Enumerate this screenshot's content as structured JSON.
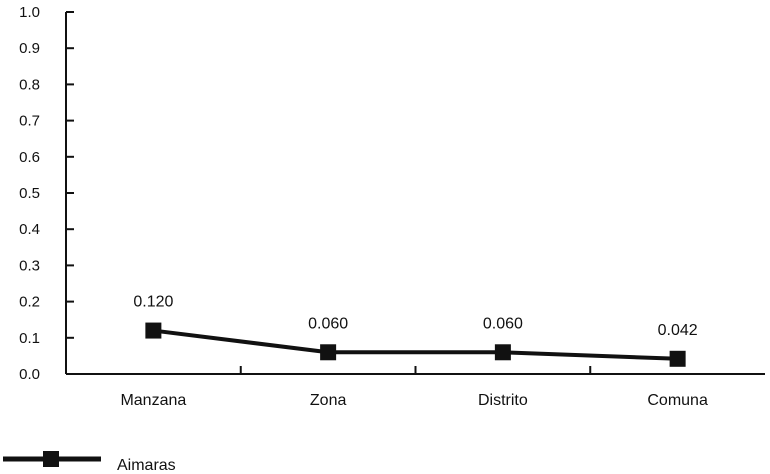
{
  "chart_data": {
    "type": "line",
    "categories": [
      "Manzana",
      "Zona",
      "Distrito",
      "Comuna"
    ],
    "series": [
      {
        "name": "Aimaras",
        "values": [
          0.12,
          0.06,
          0.06,
          0.042
        ]
      }
    ],
    "data_labels": [
      "0.120",
      "0.060",
      "0.060",
      "0.042"
    ],
    "yticks": [
      "0.0",
      "0.1",
      "0.2",
      "0.3",
      "0.4",
      "0.5",
      "0.6",
      "0.7",
      "0.8",
      "0.9",
      "1.0"
    ],
    "ylim": [
      0,
      1.0
    ],
    "title": "",
    "xlabel": "",
    "ylabel": "",
    "grid": false,
    "legend_position": "bottom-left",
    "colors": {
      "line": "#111111",
      "marker": "#111111",
      "axis": "#111111"
    }
  }
}
